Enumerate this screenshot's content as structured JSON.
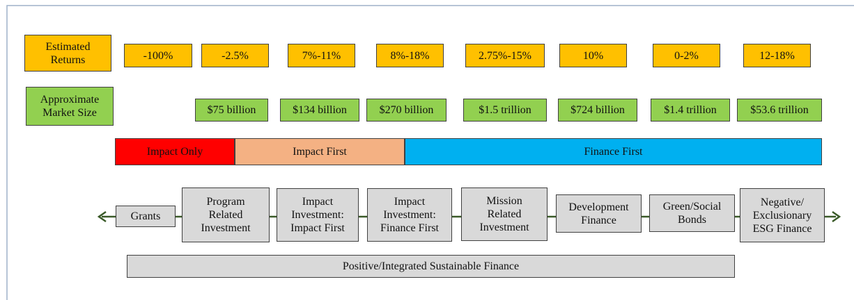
{
  "returns": {
    "label": [
      "Estimated",
      "Returns"
    ],
    "values": [
      "-100%",
      "-2.5%",
      "7%-11%",
      "8%-18%",
      "2.75%-15%",
      "10%",
      "0-2%",
      "12-18%"
    ]
  },
  "market_size": {
    "label": [
      "Approximate",
      "Market Size"
    ],
    "values": [
      "$75 billion",
      "$134 billion",
      "$270 billion",
      "$1.5 trillion",
      "$724 billion",
      "$1.4 trillion",
      "$53.6 trillion"
    ]
  },
  "bands": [
    "Impact Only",
    "Impact First",
    "Finance First"
  ],
  "nodes": [
    [
      "Grants"
    ],
    [
      "Program",
      "Related",
      "Investment"
    ],
    [
      "Impact",
      "Investment:",
      "Impact First"
    ],
    [
      "Impact",
      "Investment:",
      "Finance First"
    ],
    [
      "Mission",
      "Related",
      "Investment"
    ],
    [
      "Development",
      "Finance"
    ],
    [
      "Green/Social",
      "Bonds"
    ],
    [
      "Negative/",
      "Exclusionary",
      "ESG Finance"
    ]
  ],
  "footer": "Positive/Integrated Sustainable Finance"
}
